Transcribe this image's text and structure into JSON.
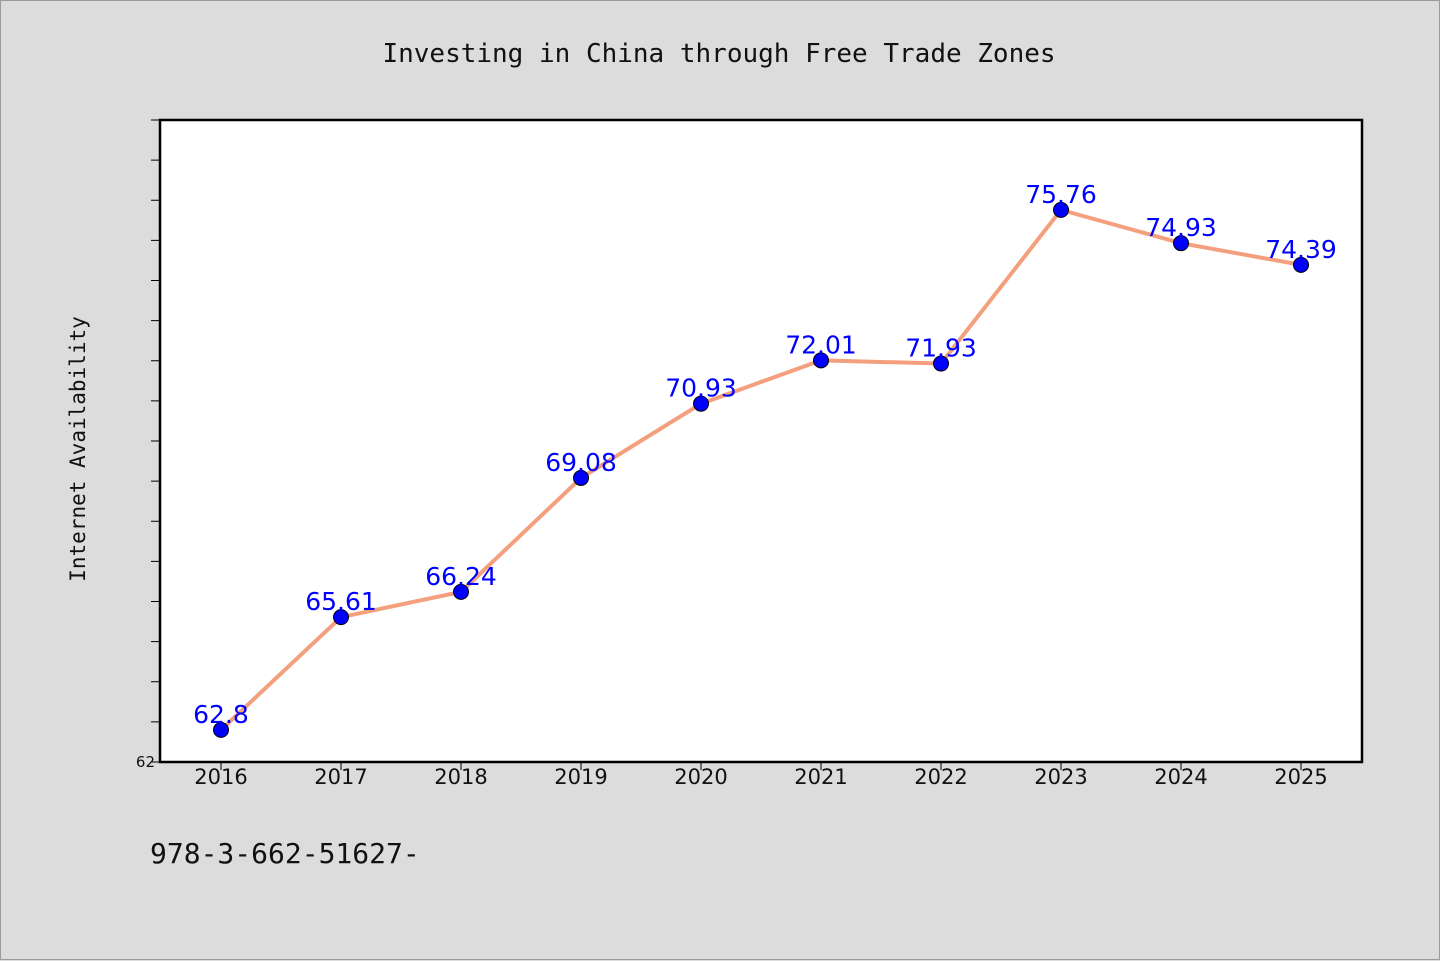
{
  "chart_data": {
    "type": "line",
    "title": "Investing in China through Free Trade Zones",
    "xlabel": "",
    "ylabel": "Internet Availability",
    "categories": [
      "2016",
      "2017",
      "2018",
      "2019",
      "2020",
      "2021",
      "2022",
      "2023",
      "2024",
      "2025"
    ],
    "values": [
      62.8,
      65.61,
      66.24,
      69.08,
      70.93,
      72.01,
      71.93,
      75.76,
      74.93,
      74.39
    ],
    "data_labels": [
      "62.8",
      "65.61",
      "66.24",
      "69.08",
      "70.93",
      "72.01",
      "71.93",
      "75.76",
      "74.93",
      "74.39"
    ],
    "ylim": [
      62,
      78
    ],
    "y_tick_labels": [
      "62"
    ],
    "grid": false,
    "legend": "none",
    "line_color": "#f4a07e",
    "marker_color": "#0000ff",
    "label_color": "#0000ff"
  },
  "footer": {
    "text": "978-3-662-51627-"
  }
}
